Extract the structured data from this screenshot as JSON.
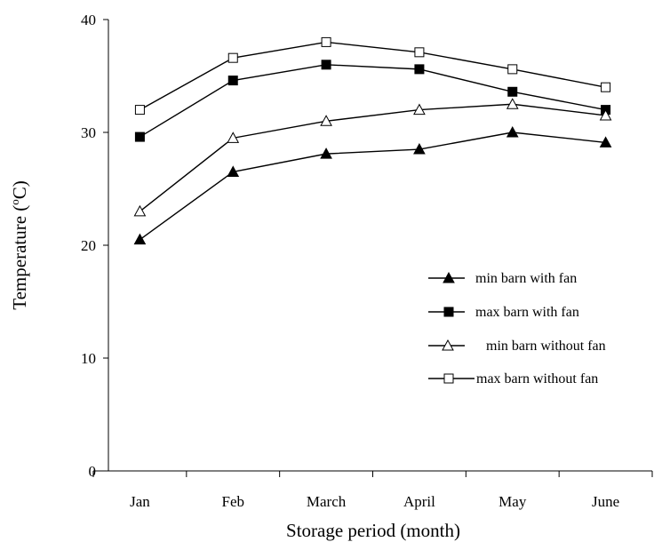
{
  "chart_data": {
    "type": "line",
    "xlabel": "Storage period (month)",
    "ylabel": "Temperature (°C)",
    "categories": [
      "Jan",
      "Feb",
      "March",
      "April",
      "May",
      "June"
    ],
    "ylim": [
      0,
      40
    ],
    "yticks": [
      "0",
      "10",
      "20",
      "30",
      "40"
    ],
    "grid": false,
    "legend_position": "right",
    "series": [
      {
        "name": "min barn with fan",
        "marker": "triangle-filled",
        "values": [
          20.5,
          26.5,
          28.1,
          28.5,
          30.0,
          29.1
        ]
      },
      {
        "name": "max barn with fan",
        "marker": "square-filled",
        "values": [
          29.6,
          34.6,
          36.0,
          35.6,
          33.6,
          32.0
        ]
      },
      {
        "name": "min barn without fan",
        "marker": "triangle-open",
        "values": [
          23.0,
          29.5,
          31.0,
          32.0,
          32.5,
          31.5
        ]
      },
      {
        "name": "max barn without fan",
        "marker": "square-open",
        "values": [
          32.0,
          36.6,
          38.0,
          37.1,
          35.6,
          34.0
        ]
      }
    ]
  }
}
